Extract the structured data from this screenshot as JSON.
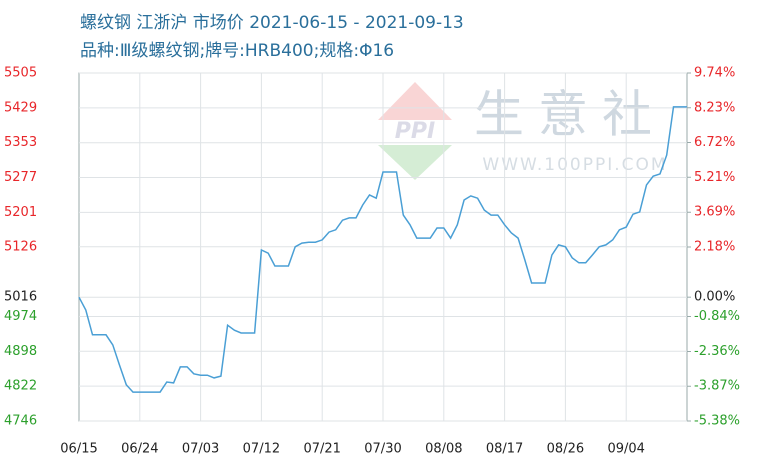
{
  "chart_data": {
    "type": "line",
    "title": "螺纹钢 江浙沪 市场价 2021-06-15 - 2021-09-13",
    "subtitle": "品种:Ⅲ级螺纹钢;牌号:HRB400;规格:Φ16",
    "watermark": "生意社",
    "watermark_url": "WWW.100PPI.COM",
    "categories": [
      "06/15",
      null,
      null,
      null,
      null,
      null,
      null,
      null,
      null,
      "06/24",
      null,
      null,
      null,
      null,
      null,
      null,
      null,
      null,
      "07/03",
      null,
      null,
      null,
      null,
      null,
      null,
      null,
      null,
      "07/12",
      null,
      null,
      null,
      null,
      null,
      null,
      null,
      null,
      "07/21",
      null,
      null,
      null,
      null,
      null,
      null,
      null,
      null,
      "07/30",
      null,
      null,
      null,
      null,
      null,
      null,
      null,
      null,
      "08/08",
      null,
      null,
      null,
      null,
      null,
      null,
      null,
      null,
      "08/17",
      null,
      null,
      null,
      null,
      null,
      null,
      null,
      null,
      "08/26",
      null,
      null,
      null,
      null,
      null,
      null,
      null,
      null,
      "09/04",
      null,
      null,
      null,
      null,
      null,
      null,
      null,
      null,
      null
    ],
    "series": [
      {
        "color": "#4a9fd5",
        "values": [
          5016,
          4988,
          4934,
          4934,
          4934,
          4912,
          4868,
          4825,
          4809,
          4809,
          4809,
          4809,
          4809,
          4831,
          4829,
          4864,
          4864,
          4849,
          4846,
          4846,
          4840,
          4844,
          4955,
          4944,
          4938,
          4938,
          4938,
          5119,
          5112,
          5084,
          5084,
          5084,
          5126,
          5134,
          5136,
          5136,
          5141,
          5158,
          5163,
          5184,
          5189,
          5189,
          5217,
          5239,
          5232,
          5289,
          5289,
          5289,
          5195,
          5174,
          5145,
          5145,
          5145,
          5167,
          5167,
          5145,
          5174,
          5228,
          5237,
          5232,
          5206,
          5195,
          5195,
          5174,
          5156,
          5145,
          5097,
          5047,
          5047,
          5047,
          5108,
          5130,
          5126,
          5102,
          5091,
          5091,
          5108,
          5126,
          5130,
          5141,
          5163,
          5169,
          5197,
          5202,
          5261,
          5280,
          5285,
          5326,
          5431,
          5431,
          5431
        ]
      }
    ],
    "ylim": [
      4746,
      5505
    ],
    "yticks": [
      5505,
      5429,
      5353,
      5277,
      5201,
      5126,
      5016,
      4974,
      4898,
      4822,
      4746
    ],
    "y2lim": [
      -5.38,
      9.74
    ],
    "y2ticks": [
      {
        "value": 9.74,
        "label": "9.74%"
      },
      {
        "value": 8.23,
        "label": "8.23%"
      },
      {
        "value": 6.72,
        "label": "6.72%"
      },
      {
        "value": 5.21,
        "label": "5.21%"
      },
      {
        "value": 3.69,
        "label": "3.69%"
      },
      {
        "value": 2.18,
        "label": "2.18%"
      },
      {
        "value": 0,
        "label": "0.00%"
      },
      {
        "value": -0.84,
        "label": "-0.84%"
      },
      {
        "value": -2.36,
        "label": "-2.36%"
      },
      {
        "value": -3.87,
        "label": "-3.87%"
      },
      {
        "value": -5.38,
        "label": "-5.38%"
      }
    ],
    "up_color": "#e8262a",
    "down_color": "#2ca02c",
    "grid": true
  }
}
